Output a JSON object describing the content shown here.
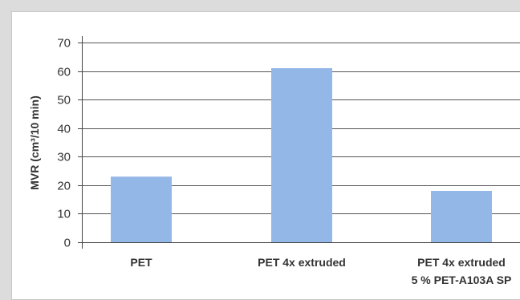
{
  "chart_data": {
    "type": "bar",
    "title": "",
    "xlabel": "",
    "ylabel": "MVR (cm³/10 min)",
    "ylim": [
      0,
      70
    ],
    "yticks": [
      "0",
      "10",
      "20",
      "30",
      "40",
      "50",
      "60",
      "70"
    ],
    "categories": [
      [
        "PET"
      ],
      [
        "PET 4x extruded"
      ],
      [
        "PET 4x extruded",
        "5 % PET-A103A SP"
      ]
    ],
    "values": [
      23,
      61,
      18
    ],
    "grid": true,
    "legend": "none",
    "colors": {
      "bar": "#93b7e6",
      "grid": "#555555",
      "axis": "#444444"
    }
  }
}
